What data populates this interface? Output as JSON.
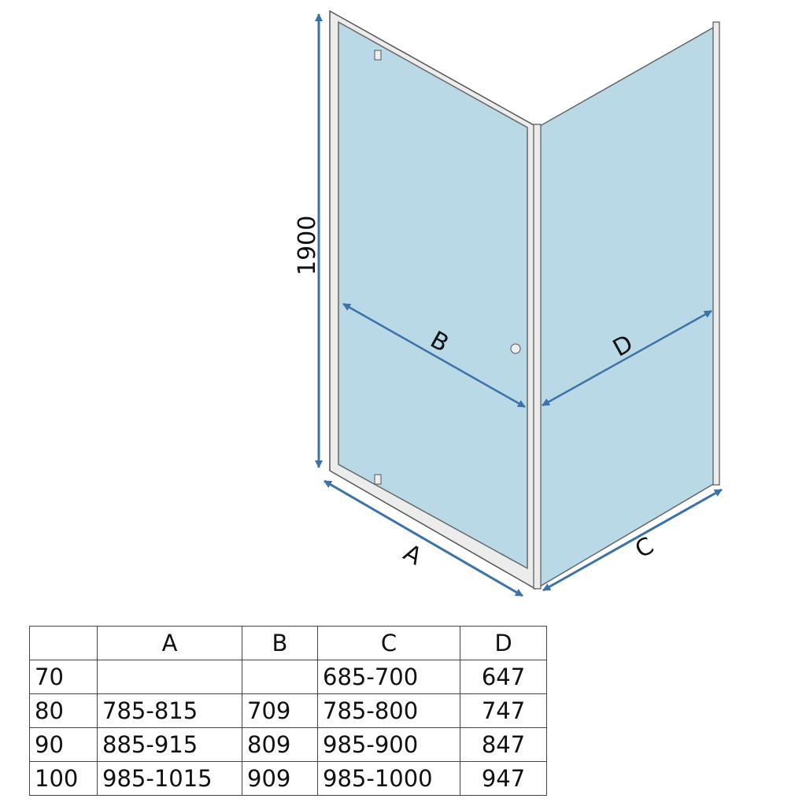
{
  "diagram": {
    "height_label": "1900",
    "labels": {
      "A": "A",
      "B": "B",
      "C": "C",
      "D": "D"
    },
    "colors": {
      "glass": "#b9d9e6",
      "frame": "#d8d8d8",
      "arrow": "#3b72a8"
    }
  },
  "table": {
    "headers": [
      "",
      "A",
      "B",
      "C",
      "D"
    ],
    "rows": [
      [
        "70",
        "",
        "",
        "685-700",
        "647"
      ],
      [
        "80",
        "785-815",
        "709",
        "785-800",
        "747"
      ],
      [
        "90",
        "885-915",
        "809",
        "985-900",
        "847"
      ],
      [
        "100",
        "985-1015",
        "909",
        "985-1000",
        "947"
      ]
    ]
  }
}
